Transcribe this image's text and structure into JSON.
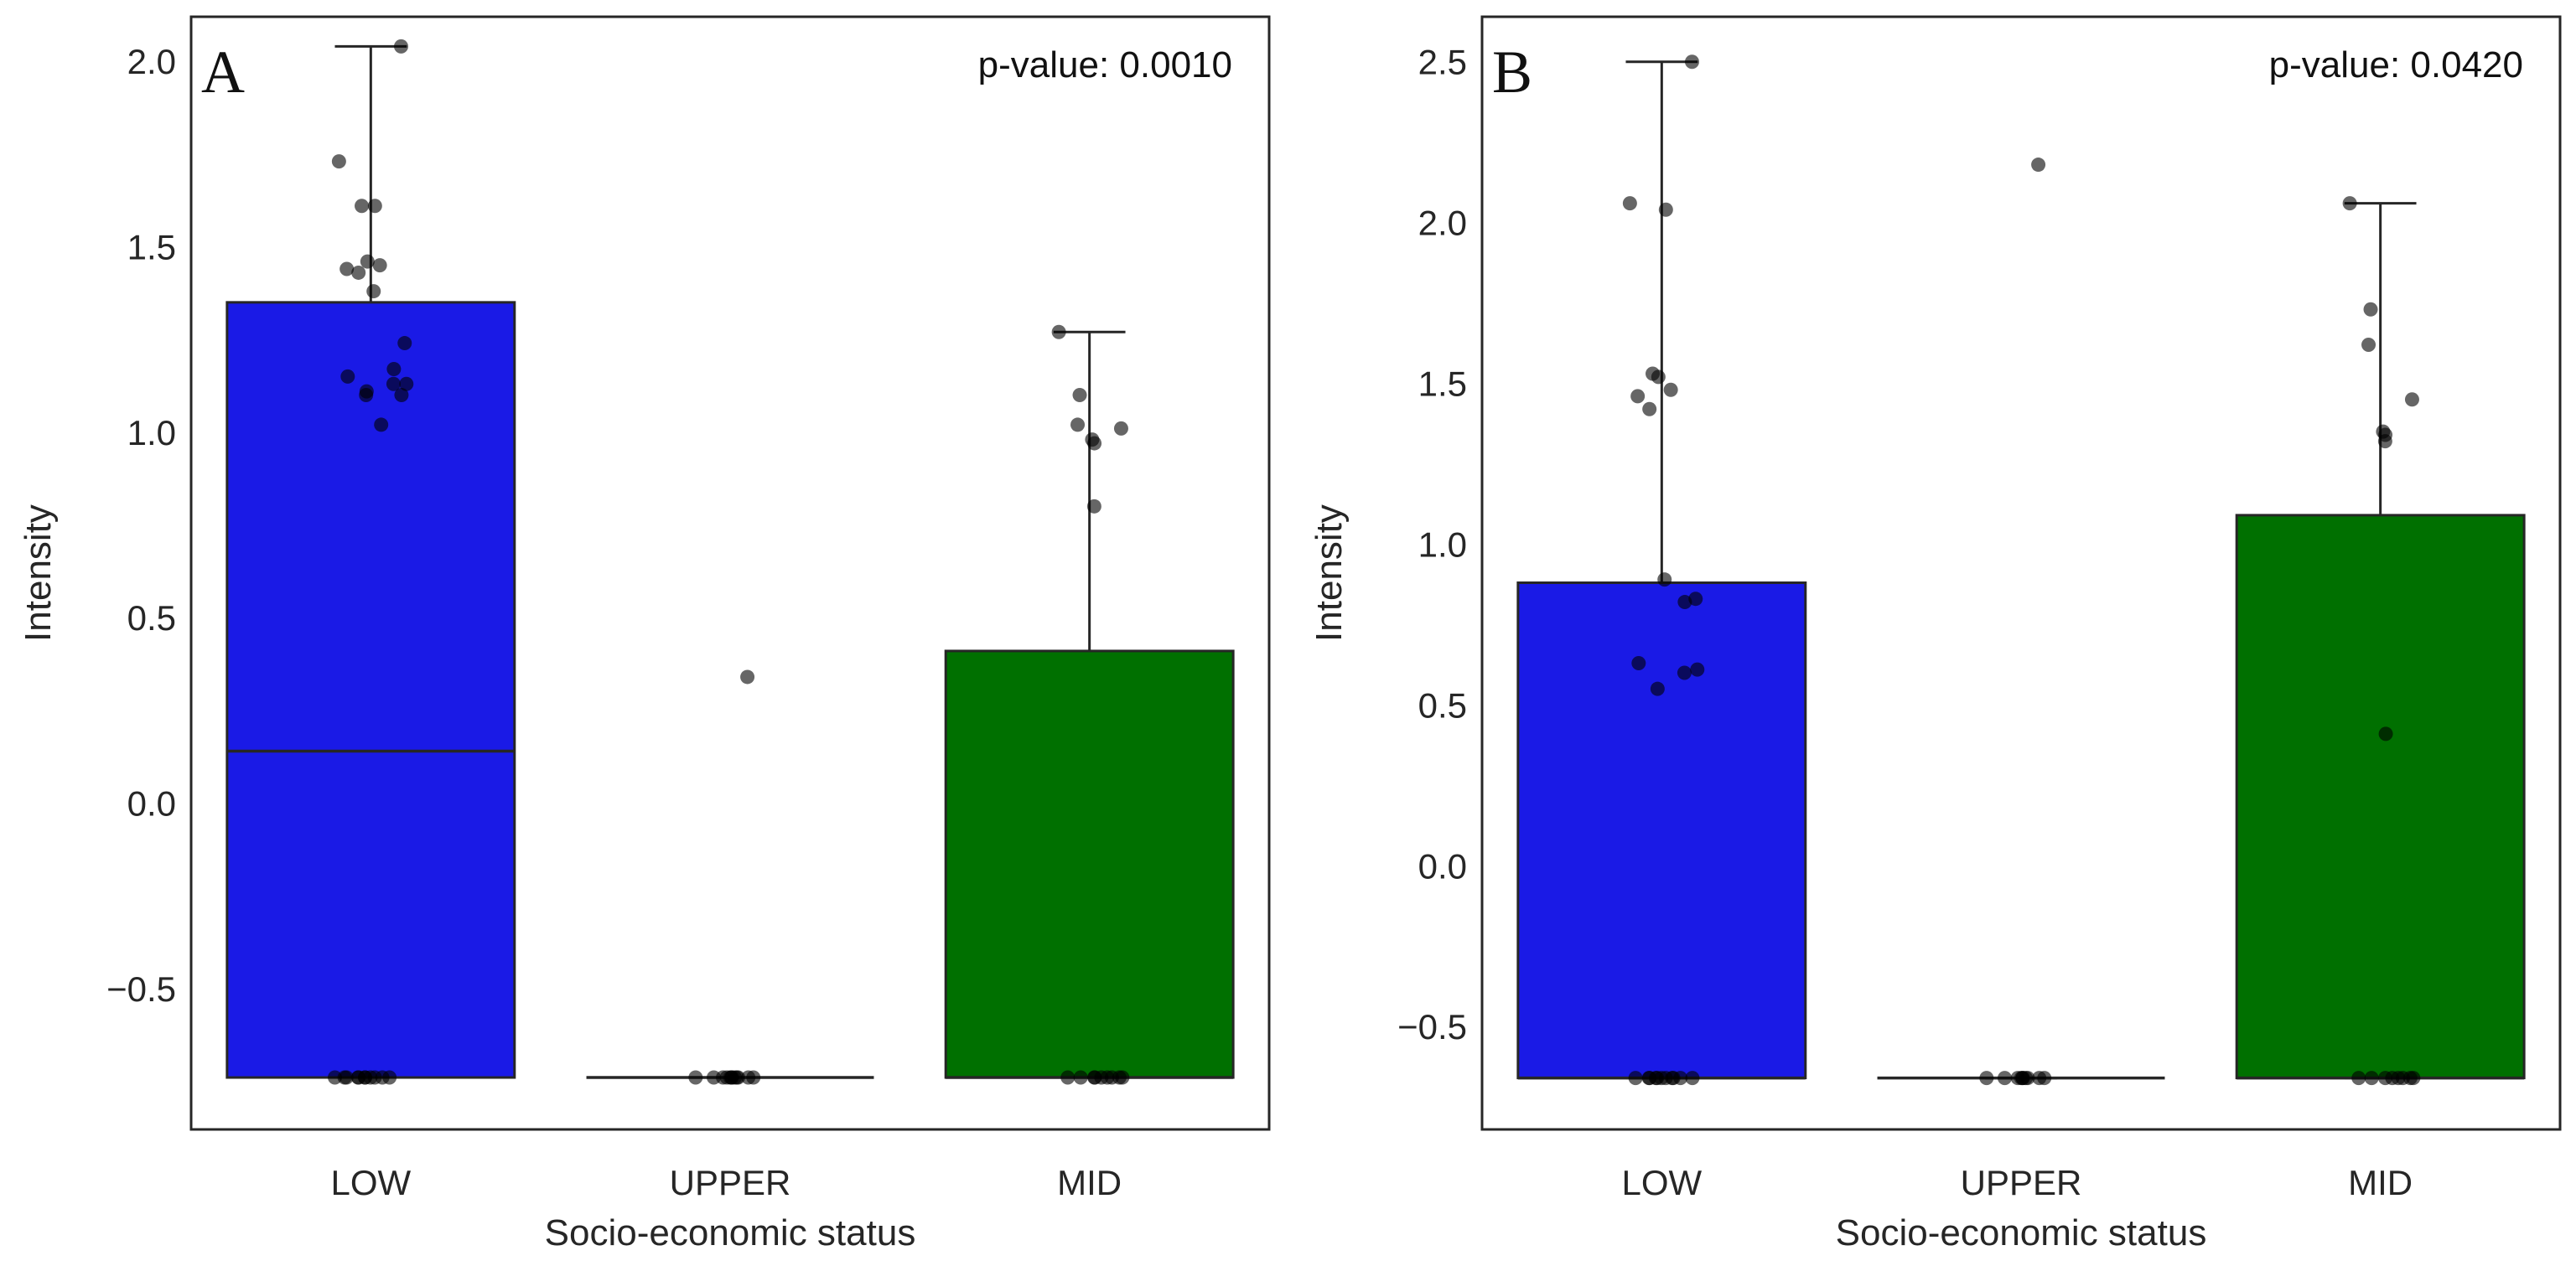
{
  "chart_data": [
    {
      "type": "box",
      "panel_label": "A",
      "annotation": "p-value: 0.0010",
      "xlabel": "Socio-economic status",
      "ylabel": "Intensity",
      "ylim": [
        -0.88,
        2.12
      ],
      "yticks": [
        -0.5,
        0.0,
        0.5,
        1.0,
        1.5,
        2.0
      ],
      "ytick_labels": [
        "−0.5",
        "0.0",
        "0.5",
        "1.0",
        "1.5",
        "2.0"
      ],
      "categories": [
        "LOW",
        "UPPER",
        "MID"
      ],
      "colors": {
        "LOW": "#1a1ae6",
        "UPPER": "#e08020",
        "MID": "#007000"
      },
      "boxes": [
        {
          "category": "LOW",
          "min": -0.74,
          "q1": -0.74,
          "median": 0.14,
          "q3": 1.35,
          "max": 2.04
        },
        {
          "category": "UPPER",
          "min": -0.74,
          "q1": -0.74,
          "median": -0.74,
          "q3": -0.74,
          "max": -0.74
        },
        {
          "category": "MID",
          "min": -0.74,
          "q1": -0.74,
          "median": -0.74,
          "q3": 0.41,
          "max": 1.27
        }
      ],
      "points": [
        {
          "category": "LOW",
          "values": [
            2.04,
            1.73,
            1.61,
            1.61,
            1.46,
            1.45,
            1.44,
            1.43,
            1.38,
            1.24,
            1.17,
            1.15,
            1.13,
            1.13,
            1.11,
            1.1,
            1.1,
            1.02,
            -0.74,
            -0.74,
            -0.74,
            -0.74,
            -0.74,
            -0.74,
            -0.74,
            -0.74,
            -0.74,
            -0.74,
            -0.74
          ]
        },
        {
          "category": "UPPER",
          "values": [
            0.34,
            -0.74,
            -0.74,
            -0.74,
            -0.74,
            -0.74,
            -0.74,
            -0.74,
            -0.74,
            -0.74,
            -0.74,
            -0.74,
            -0.74
          ]
        },
        {
          "category": "MID",
          "values": [
            1.27,
            1.1,
            1.02,
            1.01,
            0.98,
            0.97,
            0.8,
            -0.74,
            -0.74,
            -0.74,
            -0.74,
            -0.74,
            -0.74,
            -0.74,
            -0.74,
            -0.74
          ]
        }
      ]
    },
    {
      "type": "box",
      "panel_label": "B",
      "annotation": "p-value: 0.0420",
      "xlabel": "Socio-economic status",
      "ylabel": "Intensity",
      "ylim": [
        -0.82,
        2.64
      ],
      "yticks": [
        -0.5,
        0.0,
        0.5,
        1.0,
        1.5,
        2.0,
        2.5
      ],
      "ytick_labels": [
        "−0.5",
        "0.0",
        "0.5",
        "1.0",
        "1.5",
        "2.0",
        "2.5"
      ],
      "categories": [
        "LOW",
        "UPPER",
        "MID"
      ],
      "colors": {
        "LOW": "#1a1ae6",
        "UPPER": "#e08020",
        "MID": "#007000"
      },
      "boxes": [
        {
          "category": "LOW",
          "min": -0.66,
          "q1": -0.66,
          "median": -0.66,
          "q3": 0.88,
          "max": 2.5
        },
        {
          "category": "UPPER",
          "min": -0.66,
          "q1": -0.66,
          "median": -0.66,
          "q3": -0.66,
          "max": -0.66
        },
        {
          "category": "MID",
          "min": -0.66,
          "q1": -0.66,
          "median": -0.66,
          "q3": 1.09,
          "max": 2.06
        }
      ],
      "points": [
        {
          "category": "LOW",
          "values": [
            2.5,
            2.06,
            2.04,
            1.53,
            1.52,
            1.48,
            1.46,
            1.42,
            0.89,
            0.83,
            0.82,
            0.63,
            0.61,
            0.6,
            0.55,
            -0.66,
            -0.66,
            -0.66,
            -0.66,
            -0.66,
            -0.66,
            -0.66,
            -0.66,
            -0.66,
            -0.66,
            -0.66
          ]
        },
        {
          "category": "UPPER",
          "values": [
            2.18,
            -0.66,
            -0.66,
            -0.66,
            -0.66,
            -0.66,
            -0.66,
            -0.66,
            -0.66,
            -0.66,
            -0.66
          ]
        },
        {
          "category": "MID",
          "values": [
            2.06,
            1.73,
            1.62,
            1.45,
            1.35,
            1.34,
            1.32,
            0.41,
            -0.66,
            -0.66,
            -0.66,
            -0.66,
            -0.66,
            -0.66,
            -0.66,
            -0.66
          ]
        }
      ]
    }
  ]
}
